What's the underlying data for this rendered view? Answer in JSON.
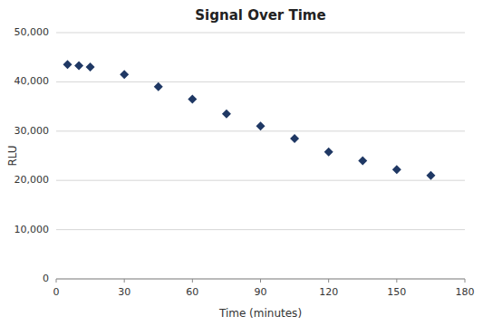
{
  "chart_data": {
    "type": "scatter",
    "title": "Signal Over Time",
    "x_label": "Time (minutes)",
    "y_label": "RLU",
    "x": [
      5,
      10,
      15,
      30,
      45,
      60,
      75,
      90,
      105,
      120,
      135,
      150,
      165
    ],
    "values": [
      43500,
      43300,
      43000,
      41500,
      39000,
      36500,
      33500,
      31000,
      28500,
      25800,
      24000,
      22200,
      21000
    ],
    "color": "#1f3864",
    "marker": "diamond",
    "xlim": [
      0,
      180
    ],
    "ylim": [
      0,
      50000
    ],
    "xticks": [
      0,
      30,
      60,
      90,
      120,
      150,
      180
    ],
    "yticks": [
      0,
      {
        "value": 10000,
        "label": "10,000"
      },
      {
        "value": 20000,
        "label": "20,000"
      },
      {
        "value": 30000,
        "label": "30,000"
      },
      {
        "value": 40000,
        "label": "40,000"
      },
      {
        "value": 50000,
        "label": "50,000"
      }
    ],
    "grid": true
  }
}
